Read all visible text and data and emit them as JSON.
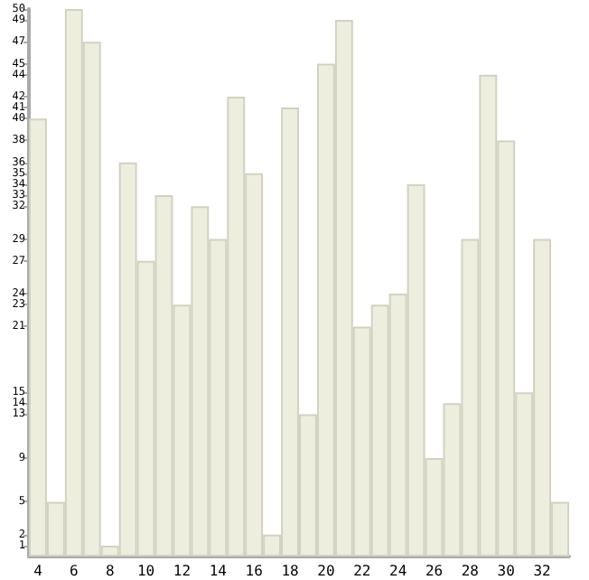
{
  "chart_data": {
    "type": "bar",
    "categories": [
      "4",
      null,
      "6",
      null,
      "8",
      null,
      "10",
      null,
      "12",
      null,
      "14",
      null,
      "16",
      null,
      "18",
      null,
      "20",
      null,
      "22",
      null,
      "24",
      null,
      "26",
      null,
      "28",
      null,
      "30",
      null,
      "32",
      null
    ],
    "values": [
      40,
      5,
      50,
      47,
      1,
      36,
      27,
      33,
      23,
      32,
      29,
      42,
      35,
      2,
      41,
      13,
      45,
      49,
      21,
      23,
      24,
      34,
      9,
      14,
      29,
      44,
      38,
      15,
      29,
      5
    ],
    "color": "#eeeedf",
    "ylim": [
      0,
      50
    ],
    "yticks": [
      1,
      2,
      5,
      9,
      13,
      14,
      15,
      21,
      23,
      24,
      27,
      29,
      32,
      33,
      34,
      35,
      36,
      38,
      40,
      41,
      42,
      44,
      45,
      47,
      49,
      50
    ],
    "grid": false
  }
}
